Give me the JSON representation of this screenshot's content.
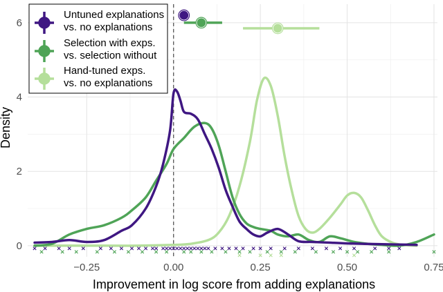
{
  "chart_data": {
    "type": "line",
    "title": "",
    "xlabel": "Improvement in log score from adding explanations",
    "ylabel": "Density",
    "xlim": [
      -0.42,
      0.76
    ],
    "ylim": [
      -0.3,
      6.5
    ],
    "x_ticks": [
      -0.25,
      0.0,
      0.25,
      0.5,
      0.75
    ],
    "x_tick_labels": [
      "−0.25",
      "0.00",
      "0.25",
      "0.50",
      "0.75"
    ],
    "y_ticks": [
      0,
      2,
      4,
      6
    ],
    "y_tick_labels": [
      "0",
      "2",
      "4",
      "6"
    ],
    "grid": true,
    "reference_line_x": 0,
    "legend_position": "top-left",
    "series": [
      {
        "name": "Untuned explanations vs. no explanations",
        "color": "#3f1782",
        "points": [
          [
            -0.4,
            0.08
          ],
          [
            -0.35,
            0.1
          ],
          [
            -0.3,
            0.15
          ],
          [
            -0.25,
            0.1
          ],
          [
            -0.2,
            0.15
          ],
          [
            -0.15,
            0.4
          ],
          [
            -0.12,
            0.55
          ],
          [
            -0.08,
            1.0
          ],
          [
            -0.05,
            1.6
          ],
          [
            -0.03,
            2.2
          ],
          [
            -0.01,
            3.1
          ],
          [
            0.0,
            4.1
          ],
          [
            0.01,
            4.15
          ],
          [
            0.02,
            3.9
          ],
          [
            0.03,
            3.6
          ],
          [
            0.05,
            3.55
          ],
          [
            0.07,
            3.4
          ],
          [
            0.09,
            3.0
          ],
          [
            0.11,
            2.6
          ],
          [
            0.13,
            2.1
          ],
          [
            0.15,
            1.5
          ],
          [
            0.17,
            1.05
          ],
          [
            0.19,
            0.65
          ],
          [
            0.21,
            0.45
          ],
          [
            0.23,
            0.3
          ],
          [
            0.25,
            0.25
          ],
          [
            0.27,
            0.35
          ],
          [
            0.3,
            0.45
          ],
          [
            0.33,
            0.3
          ],
          [
            0.36,
            0.12
          ],
          [
            0.4,
            0.1
          ],
          [
            0.45,
            0.08
          ],
          [
            0.5,
            0.06
          ],
          [
            0.55,
            0.05
          ],
          [
            0.6,
            0.04
          ],
          [
            0.65,
            0.03
          ],
          [
            0.7,
            0.02
          ]
        ],
        "estimate": 0.03,
        "ci": [
          0.025,
          0.035
        ]
      },
      {
        "name": "Selection with exps. vs. selection without",
        "color": "#4fa457",
        "points": [
          [
            -0.4,
            0.0
          ],
          [
            -0.35,
            0.05
          ],
          [
            -0.3,
            0.3
          ],
          [
            -0.25,
            0.45
          ],
          [
            -0.2,
            0.55
          ],
          [
            -0.15,
            0.75
          ],
          [
            -0.12,
            0.95
          ],
          [
            -0.08,
            1.3
          ],
          [
            -0.05,
            1.75
          ],
          [
            -0.02,
            2.2
          ],
          [
            0.0,
            2.6
          ],
          [
            0.03,
            2.9
          ],
          [
            0.06,
            3.2
          ],
          [
            0.09,
            3.3
          ],
          [
            0.11,
            3.15
          ],
          [
            0.13,
            2.7
          ],
          [
            0.15,
            2.0
          ],
          [
            0.17,
            1.3
          ],
          [
            0.19,
            0.85
          ],
          [
            0.21,
            0.6
          ],
          [
            0.23,
            0.5
          ],
          [
            0.25,
            0.45
          ],
          [
            0.28,
            0.4
          ],
          [
            0.3,
            0.3
          ],
          [
            0.33,
            0.25
          ],
          [
            0.36,
            0.3
          ],
          [
            0.39,
            0.15
          ],
          [
            0.42,
            0.1
          ],
          [
            0.45,
            0.25
          ],
          [
            0.48,
            0.2
          ],
          [
            0.52,
            0.1
          ],
          [
            0.56,
            0.05
          ],
          [
            0.6,
            0.02
          ],
          [
            0.65,
            0.0
          ],
          [
            0.7,
            0.1
          ],
          [
            0.75,
            0.3
          ]
        ],
        "estimate": 0.08,
        "ci": [
          0.03,
          0.14
        ]
      },
      {
        "name": "Hand-tuned exps. vs. no explanations",
        "color": "#b5df9b",
        "points": [
          [
            -0.4,
            0.0
          ],
          [
            -0.2,
            0.0
          ],
          [
            -0.1,
            0.0
          ],
          [
            0.0,
            0.02
          ],
          [
            0.05,
            0.05
          ],
          [
            0.1,
            0.15
          ],
          [
            0.13,
            0.35
          ],
          [
            0.16,
            0.8
          ],
          [
            0.19,
            1.6
          ],
          [
            0.22,
            2.8
          ],
          [
            0.24,
            3.9
          ],
          [
            0.26,
            4.5
          ],
          [
            0.28,
            4.3
          ],
          [
            0.3,
            3.5
          ],
          [
            0.32,
            2.4
          ],
          [
            0.34,
            1.5
          ],
          [
            0.36,
            0.8
          ],
          [
            0.38,
            0.45
          ],
          [
            0.4,
            0.35
          ],
          [
            0.42,
            0.45
          ],
          [
            0.45,
            0.75
          ],
          [
            0.48,
            1.1
          ],
          [
            0.5,
            1.35
          ],
          [
            0.52,
            1.42
          ],
          [
            0.54,
            1.3
          ],
          [
            0.56,
            0.95
          ],
          [
            0.58,
            0.55
          ],
          [
            0.6,
            0.25
          ],
          [
            0.63,
            0.08
          ],
          [
            0.66,
            0.02
          ],
          [
            0.7,
            0.0
          ]
        ],
        "estimate": 0.3,
        "ci": [
          0.2,
          0.42
        ]
      }
    ]
  },
  "legend": {
    "items": [
      {
        "line1": "Untuned explanations",
        "line2": "vs. no explanations",
        "color": "#3f1782"
      },
      {
        "line1": "Selection with exps.",
        "line2": "vs. selection without",
        "color": "#4fa457"
      },
      {
        "line1": "Hand-tuned exps.",
        "line2": "vs. no explanations",
        "color": "#b5df9b"
      }
    ]
  },
  "rug": {
    "untuned": [
      -0.4,
      -0.37,
      -0.33,
      -0.3,
      -0.26,
      -0.21,
      -0.18,
      -0.15,
      -0.12,
      -0.1,
      -0.08,
      -0.06,
      -0.05,
      -0.03,
      -0.02,
      -0.01,
      0.0,
      0.01,
      0.02,
      0.03,
      0.04,
      0.05,
      0.06,
      0.07,
      0.08,
      0.09,
      0.1,
      0.12,
      0.14,
      0.16,
      0.18,
      0.2,
      0.23,
      0.25,
      0.28,
      0.32,
      0.36,
      0.4,
      0.44,
      0.48,
      0.52,
      0.58,
      0.62,
      0.65
    ],
    "selection": [
      -0.38,
      -0.32,
      -0.28,
      -0.22,
      -0.17,
      -0.13,
      -0.09,
      -0.05,
      -0.02,
      0.03,
      0.05,
      0.08,
      0.11,
      0.15,
      0.19,
      0.22,
      0.27,
      0.31,
      0.35,
      0.41,
      0.46,
      0.5,
      0.53,
      0.57,
      0.62,
      0.75
    ],
    "handtuned": [
      0.19,
      0.25,
      0.28,
      0.31,
      0.52
    ]
  }
}
